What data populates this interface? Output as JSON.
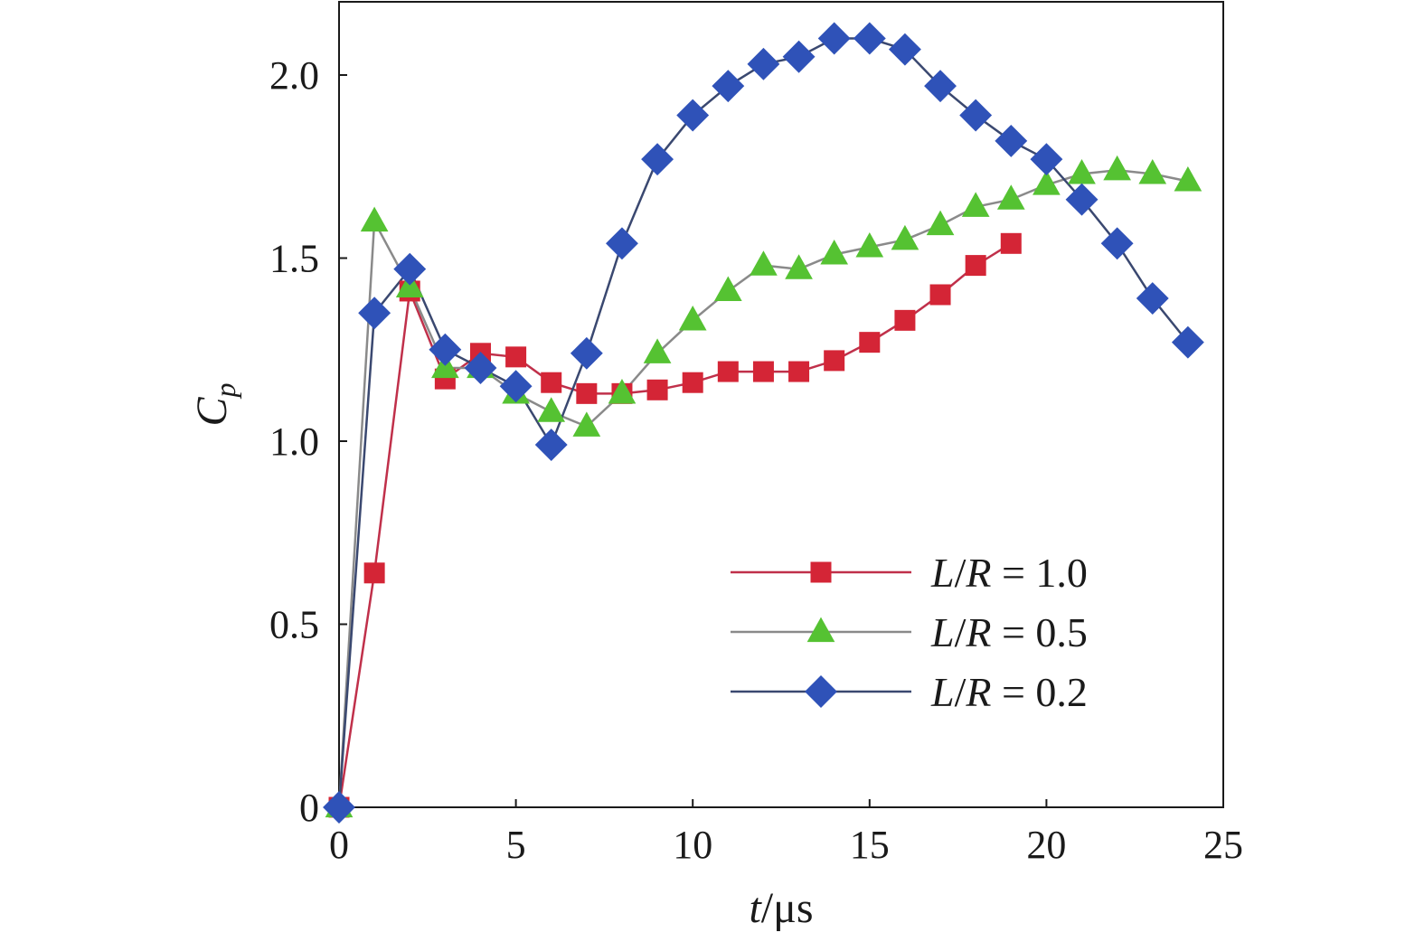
{
  "chart_data": {
    "type": "line",
    "xlabel": {
      "var": "t",
      "unit": "/μs"
    },
    "ylabel": {
      "main": "C",
      "sub": "p"
    },
    "xlim": [
      0,
      25
    ],
    "ylim": [
      0,
      2.2
    ],
    "xticks": [
      0,
      5,
      10,
      15,
      20,
      25
    ],
    "xtick_labels": [
      "0",
      "5",
      "10",
      "15",
      "20",
      "25"
    ],
    "yticks": [
      0,
      0.5,
      1.0,
      1.5,
      2.0
    ],
    "ytick_labels": [
      "0",
      "0.5",
      "1.0",
      "1.5",
      "2.0"
    ],
    "grid": false,
    "legend_position": "lower-right",
    "series": [
      {
        "name": "L/R = 1.0",
        "legend": {
          "var1": "L",
          "var2": "R",
          "rest": " = 1.0"
        },
        "marker": "square",
        "line_color": "#c0304a",
        "marker_color": "#d42536",
        "x": [
          0,
          1,
          2,
          3,
          4,
          5,
          6,
          7,
          8,
          9,
          10,
          11,
          12,
          13,
          14,
          15,
          16,
          17,
          18,
          19
        ],
        "y": [
          0,
          0.64,
          1.41,
          1.17,
          1.24,
          1.23,
          1.16,
          1.13,
          1.13,
          1.14,
          1.16,
          1.19,
          1.19,
          1.19,
          1.22,
          1.27,
          1.33,
          1.4,
          1.48,
          1.54
        ]
      },
      {
        "name": "L/R = 0.5",
        "legend": {
          "var1": "L",
          "var2": "R",
          "rest": " = 0.5"
        },
        "marker": "triangle",
        "line_color": "#8a8a8a",
        "marker_color": "#55c232",
        "x": [
          0,
          1,
          2,
          3,
          4,
          5,
          6,
          7,
          8,
          9,
          10,
          11,
          12,
          13,
          14,
          15,
          16,
          17,
          18,
          19,
          20,
          21,
          22,
          23,
          24
        ],
        "y": [
          0,
          1.6,
          1.42,
          1.2,
          1.2,
          1.13,
          1.08,
          1.04,
          1.13,
          1.24,
          1.33,
          1.41,
          1.48,
          1.47,
          1.51,
          1.53,
          1.55,
          1.59,
          1.64,
          1.66,
          1.7,
          1.73,
          1.74,
          1.73,
          1.71
        ]
      },
      {
        "name": "L/R = 0.2",
        "legend": {
          "var1": "L",
          "var2": "R",
          "rest": " = 0.2"
        },
        "marker": "diamond",
        "line_color": "#3a4870",
        "marker_color": "#2f52b8",
        "x": [
          0,
          1,
          2,
          3,
          4,
          5,
          6,
          7,
          8,
          9,
          10,
          11,
          12,
          13,
          14,
          15,
          16,
          17,
          18,
          19,
          20,
          21,
          22,
          23,
          24
        ],
        "y": [
          0,
          1.35,
          1.47,
          1.25,
          1.2,
          1.15,
          0.99,
          1.24,
          1.54,
          1.77,
          1.89,
          1.97,
          2.03,
          2.05,
          2.1,
          2.1,
          2.07,
          1.97,
          1.89,
          1.82,
          1.77,
          1.66,
          1.54,
          1.39,
          1.27
        ]
      }
    ]
  }
}
